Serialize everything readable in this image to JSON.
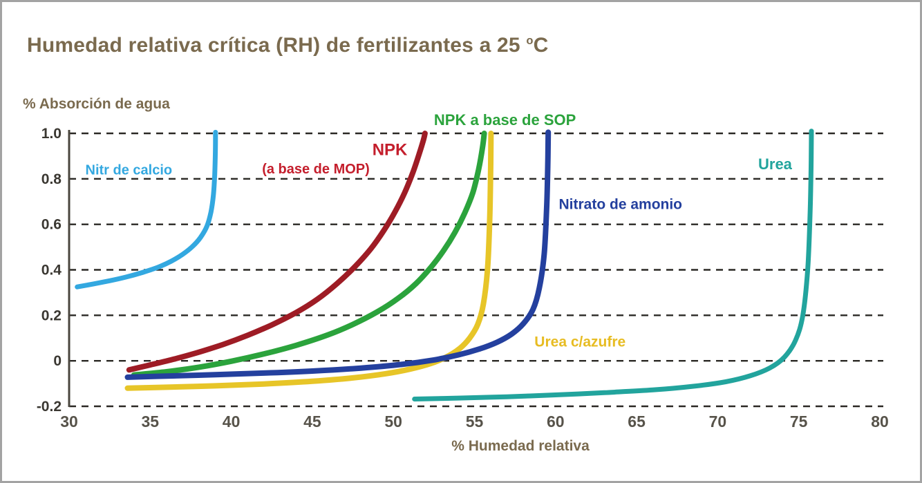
{
  "header": {
    "title_main": "Humedad relativa crítica (RH) de fertilizantes a 25 ",
    "title_sup": "o",
    "title_unit": "C"
  },
  "colors": {
    "title": "#7a6a4e",
    "axis_labels": "#7a6a4e",
    "frame_border": "#a3a3a3",
    "background": "#ffffff"
  },
  "chart_data": {
    "type": "line",
    "title": "Humedad relativa crítica (RH) de fertilizantes a 25 °C",
    "xlabel": "% Humedad relativa",
    "ylabel": "% Absorción de agua",
    "xlim": [
      30,
      80
    ],
    "ylim": [
      -0.2,
      1.0
    ],
    "grid": "horizontal-dashed",
    "legend": "inline-colored-labels",
    "style": {
      "x_tick_color": "#57534a",
      "y_tick_color": "#3a3731",
      "gridline_color": "#2a2824",
      "axis_line_color": "#4a463e"
    },
    "x_ticks": [
      {
        "value": 30,
        "label": "30"
      },
      {
        "value": 35,
        "label": "35"
      },
      {
        "value": 40,
        "label": "40"
      },
      {
        "value": 45,
        "label": "45"
      },
      {
        "value": 50,
        "label": "50"
      },
      {
        "value": 55,
        "label": "55"
      },
      {
        "value": 60,
        "label": "60"
      },
      {
        "value": 65,
        "label": "65"
      },
      {
        "value": 70,
        "label": "70"
      },
      {
        "value": 75,
        "label": "75"
      },
      {
        "value": 80,
        "label": "80"
      }
    ],
    "y_ticks": [
      {
        "value": 1.0,
        "label": "1.0"
      },
      {
        "value": 0.8,
        "label": "0.8"
      },
      {
        "value": 0.6,
        "label": "0.6"
      },
      {
        "value": 0.4,
        "label": "0.4"
      },
      {
        "value": 0.2,
        "label": "0.2"
      },
      {
        "value": 0.0,
        "label": "0"
      },
      {
        "value": -0.2,
        "label": "-0.2"
      }
    ],
    "series": [
      {
        "id": "npk-mop",
        "name": "NPK (a base de MOP)",
        "color": "#9e1c25",
        "width": 8,
        "critical_rh": 52,
        "points": [
          [
            33.7,
            -0.04
          ],
          [
            35.0,
            -0.018
          ],
          [
            36.5,
            0.008
          ],
          [
            38.0,
            0.038
          ],
          [
            39.5,
            0.072
          ],
          [
            41.0,
            0.112
          ],
          [
            42.5,
            0.158
          ],
          [
            44.0,
            0.212
          ],
          [
            45.3,
            0.27
          ],
          [
            46.5,
            0.338
          ],
          [
            47.6,
            0.412
          ],
          [
            48.6,
            0.492
          ],
          [
            49.4,
            0.572
          ],
          [
            50.1,
            0.655
          ],
          [
            50.7,
            0.74
          ],
          [
            51.2,
            0.828
          ],
          [
            51.6,
            0.912
          ],
          [
            51.85,
            0.97
          ],
          [
            51.95,
            1.0
          ]
        ]
      },
      {
        "id": "npk-sop",
        "name": "NPK a base de SOP",
        "color": "#2ba33c",
        "width": 8,
        "critical_rh": 55.6,
        "points": [
          [
            34.0,
            -0.062
          ],
          [
            36.0,
            -0.048
          ],
          [
            38.0,
            -0.028
          ],
          [
            40.0,
            -0.002
          ],
          [
            42.0,
            0.03
          ],
          [
            44.0,
            0.068
          ],
          [
            46.0,
            0.115
          ],
          [
            47.5,
            0.16
          ],
          [
            49.0,
            0.215
          ],
          [
            50.3,
            0.275
          ],
          [
            51.4,
            0.34
          ],
          [
            52.3,
            0.41
          ],
          [
            53.1,
            0.485
          ],
          [
            53.8,
            0.565
          ],
          [
            54.4,
            0.65
          ],
          [
            54.9,
            0.74
          ],
          [
            55.25,
            0.84
          ],
          [
            55.5,
            0.94
          ],
          [
            55.6,
            1.0
          ]
        ]
      },
      {
        "id": "urea-azufre",
        "name": "Urea c/azufre",
        "color": "#e7c528",
        "width": 8,
        "critical_rh": 56,
        "points": [
          [
            33.6,
            -0.12
          ],
          [
            36.0,
            -0.116
          ],
          [
            39.0,
            -0.11
          ],
          [
            42.0,
            -0.102
          ],
          [
            45.0,
            -0.09
          ],
          [
            47.5,
            -0.075
          ],
          [
            49.5,
            -0.057
          ],
          [
            51.0,
            -0.037
          ],
          [
            52.3,
            -0.012
          ],
          [
            53.3,
            0.018
          ],
          [
            54.1,
            0.055
          ],
          [
            54.7,
            0.1
          ],
          [
            55.2,
            0.16
          ],
          [
            55.55,
            0.25
          ],
          [
            55.8,
            0.4
          ],
          [
            55.93,
            0.6
          ],
          [
            55.99,
            0.8
          ],
          [
            56.02,
            1.0
          ]
        ]
      },
      {
        "id": "nitrato-de-amonio",
        "name": "Nitrato de amonio",
        "color": "#24409e",
        "width": 8,
        "critical_rh": 59.5,
        "points": [
          [
            33.6,
            -0.072
          ],
          [
            36.0,
            -0.067
          ],
          [
            39.0,
            -0.061
          ],
          [
            42.0,
            -0.054
          ],
          [
            45.0,
            -0.045
          ],
          [
            48.0,
            -0.032
          ],
          [
            50.5,
            -0.016
          ],
          [
            52.5,
            0.004
          ],
          [
            54.0,
            0.026
          ],
          [
            55.3,
            0.052
          ],
          [
            56.4,
            0.082
          ],
          [
            57.3,
            0.118
          ],
          [
            58.0,
            0.162
          ],
          [
            58.6,
            0.225
          ],
          [
            59.0,
            0.32
          ],
          [
            59.3,
            0.47
          ],
          [
            59.45,
            0.67
          ],
          [
            59.52,
            0.85
          ],
          [
            59.55,
            1.005
          ]
        ]
      },
      {
        "id": "urea",
        "name": "Urea",
        "color": "#22a49d",
        "width": 7,
        "critical_rh": 75.7,
        "points": [
          [
            51.3,
            -0.168
          ],
          [
            54.0,
            -0.164
          ],
          [
            57.0,
            -0.158
          ],
          [
            60.0,
            -0.15
          ],
          [
            63.0,
            -0.14
          ],
          [
            66.0,
            -0.128
          ],
          [
            68.5,
            -0.112
          ],
          [
            70.5,
            -0.092
          ],
          [
            72.0,
            -0.066
          ],
          [
            73.2,
            -0.032
          ],
          [
            74.1,
            0.015
          ],
          [
            74.8,
            0.09
          ],
          [
            75.25,
            0.2
          ],
          [
            75.55,
            0.4
          ],
          [
            75.7,
            0.65
          ],
          [
            75.76,
            0.85
          ],
          [
            75.78,
            1.01
          ]
        ]
      },
      {
        "id": "nitrato-de-calcio",
        "name": "Nitr de calcio",
        "color": "#33a8e0",
        "width": 7,
        "critical_rh": 39,
        "points": [
          [
            30.5,
            0.325
          ],
          [
            31.5,
            0.338
          ],
          [
            32.5,
            0.352
          ],
          [
            33.5,
            0.368
          ],
          [
            34.5,
            0.388
          ],
          [
            35.5,
            0.412
          ],
          [
            36.3,
            0.438
          ],
          [
            37.0,
            0.468
          ],
          [
            37.6,
            0.502
          ],
          [
            38.1,
            0.542
          ],
          [
            38.5,
            0.592
          ],
          [
            38.75,
            0.655
          ],
          [
            38.9,
            0.73
          ],
          [
            38.98,
            0.82
          ],
          [
            39.02,
            0.92
          ],
          [
            39.03,
            1.005
          ]
        ]
      }
    ],
    "annotations": [
      {
        "id": "nitrato-de-calcio-label",
        "text": "Nitr de calcio",
        "x": 31.0,
        "y": 0.84,
        "color": "#33a8e0",
        "size": 20,
        "anchor": "start"
      },
      {
        "id": "npk-label",
        "text": "NPK",
        "x": 48.7,
        "y": 0.93,
        "color": "#c41e2c",
        "size": 24,
        "anchor": "start"
      },
      {
        "id": "npk-mop-label",
        "text": "(a base de MOP)",
        "x": 41.9,
        "y": 0.845,
        "color": "#c41e2c",
        "size": 20,
        "anchor": "start"
      },
      {
        "id": "npk-sop-label",
        "text": "NPK a base de SOP",
        "x": 52.5,
        "y": 1.06,
        "color": "#2ba33c",
        "size": 22,
        "anchor": "start"
      },
      {
        "id": "nitrato-de-amonio-label",
        "text": "Nitrato de amonio",
        "x": 60.2,
        "y": 0.69,
        "color": "#24409e",
        "size": 21,
        "anchor": "start"
      },
      {
        "id": "urea-azufre-label",
        "text": "Urea c/azufre",
        "x": 58.7,
        "y": 0.085,
        "color": "#e7bc22",
        "size": 21,
        "anchor": "start"
      },
      {
        "id": "urea-label",
        "text": "Urea",
        "x": 72.5,
        "y": 0.865,
        "color": "#22a49d",
        "size": 22,
        "anchor": "start"
      }
    ]
  }
}
